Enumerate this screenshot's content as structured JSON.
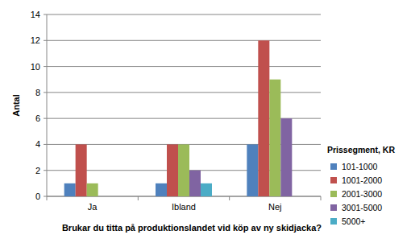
{
  "chart_data": {
    "type": "bar",
    "x_label": "Brukar du titta på produktionslandet vid köp av ny skidjacka?",
    "y_label": "Antal",
    "legend_title": "Prissegment, KR",
    "categories": [
      "Ja",
      "Ibland",
      "Nej"
    ],
    "series": [
      {
        "name": "101-1000",
        "color": "#4f81bd",
        "values": [
          1,
          1,
          4
        ]
      },
      {
        "name": "1001-2000",
        "color": "#c0504d",
        "values": [
          4,
          4,
          12
        ]
      },
      {
        "name": "2001-3000",
        "color": "#9bbb59",
        "values": [
          1,
          4,
          9
        ]
      },
      {
        "name": "3001-5000",
        "color": "#8064a2",
        "values": [
          0,
          2,
          6
        ]
      },
      {
        "name": "5000+",
        "color": "#4bacc6",
        "values": [
          0,
          1,
          0
        ]
      }
    ],
    "ylim": [
      0,
      14
    ],
    "yticks": [
      0,
      2,
      4,
      6,
      8,
      10,
      12,
      14
    ],
    "grid": true,
    "legend": "right"
  }
}
